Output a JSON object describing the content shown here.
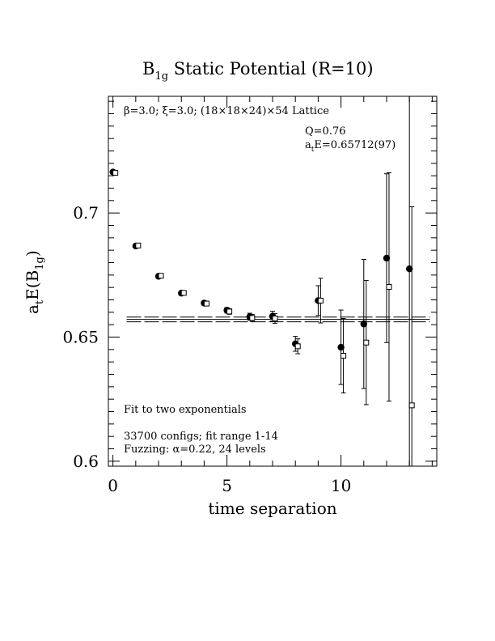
{
  "chart_data": {
    "type": "scatter",
    "title": "B1g Static Potential (R=10)",
    "xlabel": "time separation",
    "ylabel": "atE(B1g)",
    "xlim": [
      -0.2,
      14.2
    ],
    "ylim": [
      0.598,
      0.747
    ],
    "x_ticks": [
      0,
      5,
      10
    ],
    "x_tick_labels": [
      "0",
      "5",
      "10"
    ],
    "y_ticks": [
      0.6,
      0.65,
      0.7
    ],
    "y_tick_labels": [
      "0.6",
      "0.65",
      "0.7"
    ],
    "annotations": {
      "lattice": "β=3.0; ξ=3.0; (18×18×24)×54 Lattice",
      "q_value": "Q=0.76",
      "fit_energy": "atE=0.65712(97)",
      "fit_method": "Fit to two exponentials",
      "configs": "33700 configs; fit range 1-14",
      "fuzzing": "Fuzzing: α=0.22, 24 levels"
    },
    "fit": {
      "value": 0.65712,
      "error": 0.00097,
      "x_range": [
        0.6,
        13.9
      ]
    },
    "series": [
      {
        "marker": "filled-circle",
        "x": [
          0,
          1,
          2,
          3,
          4,
          5,
          6,
          7,
          8,
          9,
          10,
          11,
          12,
          13
        ],
        "y": [
          0.7165,
          0.6867,
          0.6745,
          0.6677,
          0.6637,
          0.6608,
          0.6582,
          0.6584,
          0.6473,
          0.6647,
          0.6459,
          0.6553,
          0.6818,
          0.6775
        ],
        "err": [
          0.0004,
          0.0006,
          0.0007,
          0.0008,
          0.0009,
          0.0011,
          0.0014,
          0.002,
          0.003,
          0.006,
          0.015,
          0.026,
          0.034,
          0.08
        ]
      },
      {
        "marker": "open-square",
        "x": [
          0,
          1,
          2,
          3,
          4,
          5,
          6,
          7,
          8,
          9,
          10,
          11,
          12,
          13
        ],
        "y": [
          0.7162,
          0.6869,
          0.6747,
          0.6678,
          0.6635,
          0.6603,
          0.6577,
          0.6575,
          0.6463,
          0.6647,
          0.6425,
          0.6478,
          0.6702,
          0.6225
        ],
        "err": [
          0.0004,
          0.0006,
          0.0007,
          0.0008,
          0.0009,
          0.0011,
          0.0014,
          0.002,
          0.003,
          0.009,
          0.015,
          0.025,
          0.046,
          0.08
        ]
      }
    ]
  }
}
